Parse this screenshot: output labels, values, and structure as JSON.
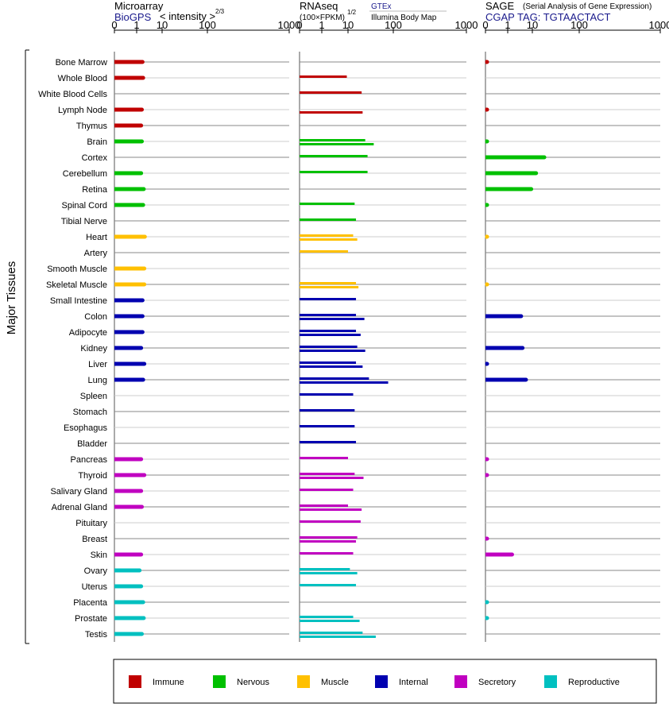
{
  "headers": {
    "microarray": {
      "title": "Microarray",
      "source": "BioGPS",
      "unit": "< intensity >",
      "unit_exp": "2/3"
    },
    "rnaseq": {
      "title": "RNAseq",
      "unit": "(100×FPKM)",
      "unit_exp": "1/2",
      "source1": "GTEx",
      "source2": "Illumina Body Map"
    },
    "sage": {
      "title": "SAGE",
      "subtitle": "(Serial Analysis of Gene Expression)",
      "tag": "CGAP TAG: TGTAACTACT"
    }
  },
  "side_label": "Major Tissues",
  "legend": [
    {
      "key": "immune",
      "label": "Immune",
      "color": "#c00000"
    },
    {
      "key": "nervous",
      "label": "Nervous",
      "color": "#00c000"
    },
    {
      "key": "muscle",
      "label": "Muscle",
      "color": "#ffc000"
    },
    {
      "key": "internal",
      "label": "Internal",
      "color": "#0000b0"
    },
    {
      "key": "secretory",
      "label": "Secretory",
      "color": "#c000c0"
    },
    {
      "key": "reproductive",
      "label": "Reproductive",
      "color": "#00c0c0"
    }
  ],
  "chart_data": [
    {
      "type": "bar",
      "panel": "microarray",
      "scale": "transformed: value^(2/3)",
      "xlim": [
        0,
        1000
      ],
      "ticks": [
        "0",
        "1",
        "10",
        "100",
        "1000"
      ],
      "tick_values": [
        0,
        1,
        10,
        100,
        1000
      ],
      "categories": [
        "Bone Marrow",
        "Whole Blood",
        "White Blood Cells",
        "Lymph Node",
        "Thymus",
        "Brain",
        "Cortex",
        "Cerebellum",
        "Retina",
        "Spinal Cord",
        "Tibial Nerve",
        "Heart",
        "Artery",
        "Smooth Muscle",
        "Skeletal Muscle",
        "Small Intestine",
        "Colon",
        "Adipocyte",
        "Kidney",
        "Liver",
        "Lung",
        "Spleen",
        "Stomach",
        "Esophagus",
        "Bladder",
        "Pancreas",
        "Thyroid",
        "Salivary Gland",
        "Adrenal Gland",
        "Pituitary",
        "Breast",
        "Skin",
        "Ovary",
        "Uterus",
        "Placenta",
        "Prostate",
        "Testis"
      ],
      "groups": [
        "immune",
        "immune",
        "immune",
        "immune",
        "immune",
        "nervous",
        "nervous",
        "nervous",
        "nervous",
        "nervous",
        "nervous",
        "muscle",
        "muscle",
        "muscle",
        "muscle",
        "internal",
        "internal",
        "internal",
        "internal",
        "internal",
        "internal",
        "internal",
        "internal",
        "internal",
        "internal",
        "secretory",
        "secretory",
        "secretory",
        "secretory",
        "secretory",
        "secretory",
        "secretory",
        "reproductive",
        "reproductive",
        "reproductive",
        "reproductive",
        "reproductive"
      ],
      "series": [
        {
          "values": [
            1.7,
            1.8,
            null,
            1.6,
            1.5,
            1.6,
            null,
            1.5,
            1.9,
            1.8,
            null,
            2.1,
            null,
            2.0,
            2.0,
            1.7,
            1.7,
            1.7,
            1.5,
            2.0,
            1.8,
            null,
            null,
            null,
            null,
            1.5,
            2.0,
            1.5,
            1.6,
            null,
            null,
            1.5,
            1.3,
            1.5,
            1.8,
            1.9,
            1.6
          ]
        }
      ]
    },
    {
      "type": "bar",
      "panel": "rnaseq",
      "scale": "transformed: (100*FPKM)^(1/2)",
      "xlim": [
        0,
        1000
      ],
      "ticks": [
        "0",
        "1",
        "10",
        "100",
        "1000"
      ],
      "tick_values": [
        0,
        1,
        10,
        100,
        1000
      ],
      "categories": [
        "Bone Marrow",
        "Whole Blood",
        "White Blood Cells",
        "Lymph Node",
        "Thymus",
        "Brain",
        "Cortex",
        "Cerebellum",
        "Retina",
        "Spinal Cord",
        "Tibial Nerve",
        "Heart",
        "Artery",
        "Smooth Muscle",
        "Skeletal Muscle",
        "Small Intestine",
        "Colon",
        "Adipocyte",
        "Kidney",
        "Liver",
        "Lung",
        "Spleen",
        "Stomach",
        "Esophagus",
        "Bladder",
        "Pancreas",
        "Thyroid",
        "Salivary Gland",
        "Adrenal Gland",
        "Pituitary",
        "Breast",
        "Skin",
        "Ovary",
        "Uterus",
        "Placenta",
        "Prostate",
        "Testis"
      ],
      "series": [
        {
          "name": "GTEx",
          "values": [
            null,
            9,
            20,
            null,
            null,
            24,
            27,
            27,
            null,
            14,
            15,
            13,
            10,
            null,
            15,
            15,
            15,
            15,
            16,
            15,
            29,
            13,
            14,
            14,
            15,
            10,
            14,
            13,
            10,
            19,
            16,
            13,
            11,
            15,
            null,
            13,
            21
          ]
        },
        {
          "name": "Illumina Body Map",
          "values": [
            null,
            null,
            null,
            21,
            null,
            37,
            null,
            null,
            null,
            null,
            null,
            16,
            null,
            null,
            17,
            null,
            23,
            19,
            24,
            21,
            77,
            null,
            null,
            null,
            null,
            null,
            22,
            null,
            20,
            null,
            15,
            null,
            16,
            null,
            null,
            18,
            41
          ]
        }
      ]
    },
    {
      "type": "bar",
      "panel": "sage",
      "scale": "transformed",
      "xlim": [
        0,
        1000
      ],
      "ticks": [
        "0",
        "1",
        "10",
        "100",
        "1000"
      ],
      "tick_values": [
        0,
        1,
        10,
        100,
        1000
      ],
      "categories": [
        "Bone Marrow",
        "Whole Blood",
        "White Blood Cells",
        "Lymph Node",
        "Thymus",
        "Brain",
        "Cortex",
        "Cerebellum",
        "Retina",
        "Spinal Cord",
        "Tibial Nerve",
        "Heart",
        "Artery",
        "Smooth Muscle",
        "Skeletal Muscle",
        "Small Intestine",
        "Colon",
        "Adipocyte",
        "Kidney",
        "Liver",
        "Lung",
        "Spleen",
        "Stomach",
        "Esophagus",
        "Bladder",
        "Pancreas",
        "Thyroid",
        "Salivary Gland",
        "Adrenal Gland",
        "Pituitary",
        "Breast",
        "Skin",
        "Ovary",
        "Uterus",
        "Placenta",
        "Prostate",
        "Testis"
      ],
      "series": [
        {
          "values": [
            0.03,
            null,
            null,
            0.03,
            null,
            0.02,
            18,
            12,
            9,
            0.03,
            null,
            0.01,
            null,
            null,
            0.01,
            null,
            3.5,
            null,
            4,
            0.05,
            5.5,
            null,
            null,
            null,
            null,
            0.03,
            0.03,
            null,
            null,
            null,
            0.02,
            1.5,
            null,
            null,
            0.02,
            0.02,
            null
          ]
        }
      ]
    }
  ]
}
